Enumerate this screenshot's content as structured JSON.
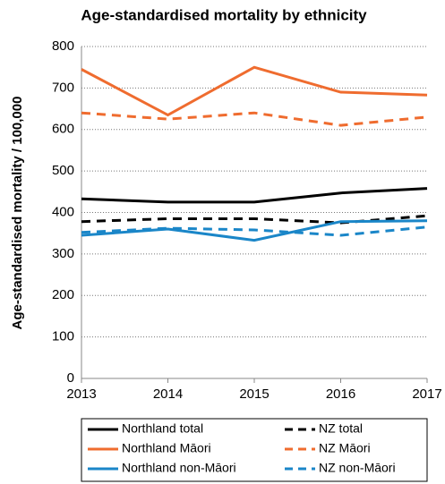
{
  "chart_data": {
    "type": "line",
    "title": "Age-standardised mortality by ethnicity",
    "y_label": "Age-standardised mortality / 100,000",
    "x": [
      2013,
      2014,
      2015,
      2016,
      2017
    ],
    "xlim": [
      2013,
      2017
    ],
    "xticks": [
      2013,
      2014,
      2015,
      2016,
      2017
    ],
    "ylim": [
      0,
      800
    ],
    "yticks": [
      0,
      100,
      200,
      300,
      400,
      500,
      600,
      700,
      800
    ],
    "grid": true,
    "legend": "bottom",
    "series": [
      {
        "name": "Northland total",
        "color": "#000000",
        "dashed": false,
        "values": [
          433,
          425,
          425,
          447,
          458
        ]
      },
      {
        "name": "NZ total",
        "color": "#000000",
        "dashed": true,
        "values": [
          378,
          385,
          385,
          375,
          392
        ]
      },
      {
        "name": "Northland Māori",
        "color": "#ef6c2f",
        "dashed": false,
        "values": [
          745,
          635,
          750,
          690,
          683
        ]
      },
      {
        "name": "NZ Māori",
        "color": "#ef6c2f",
        "dashed": true,
        "values": [
          640,
          625,
          640,
          610,
          630
        ]
      },
      {
        "name": "Northland non-Māori",
        "color": "#1a86c8",
        "dashed": false,
        "values": [
          345,
          360,
          333,
          378,
          380
        ]
      },
      {
        "name": "NZ non-Māori",
        "color": "#1a86c8",
        "dashed": true,
        "values": [
          352,
          362,
          358,
          345,
          365
        ]
      }
    ]
  }
}
